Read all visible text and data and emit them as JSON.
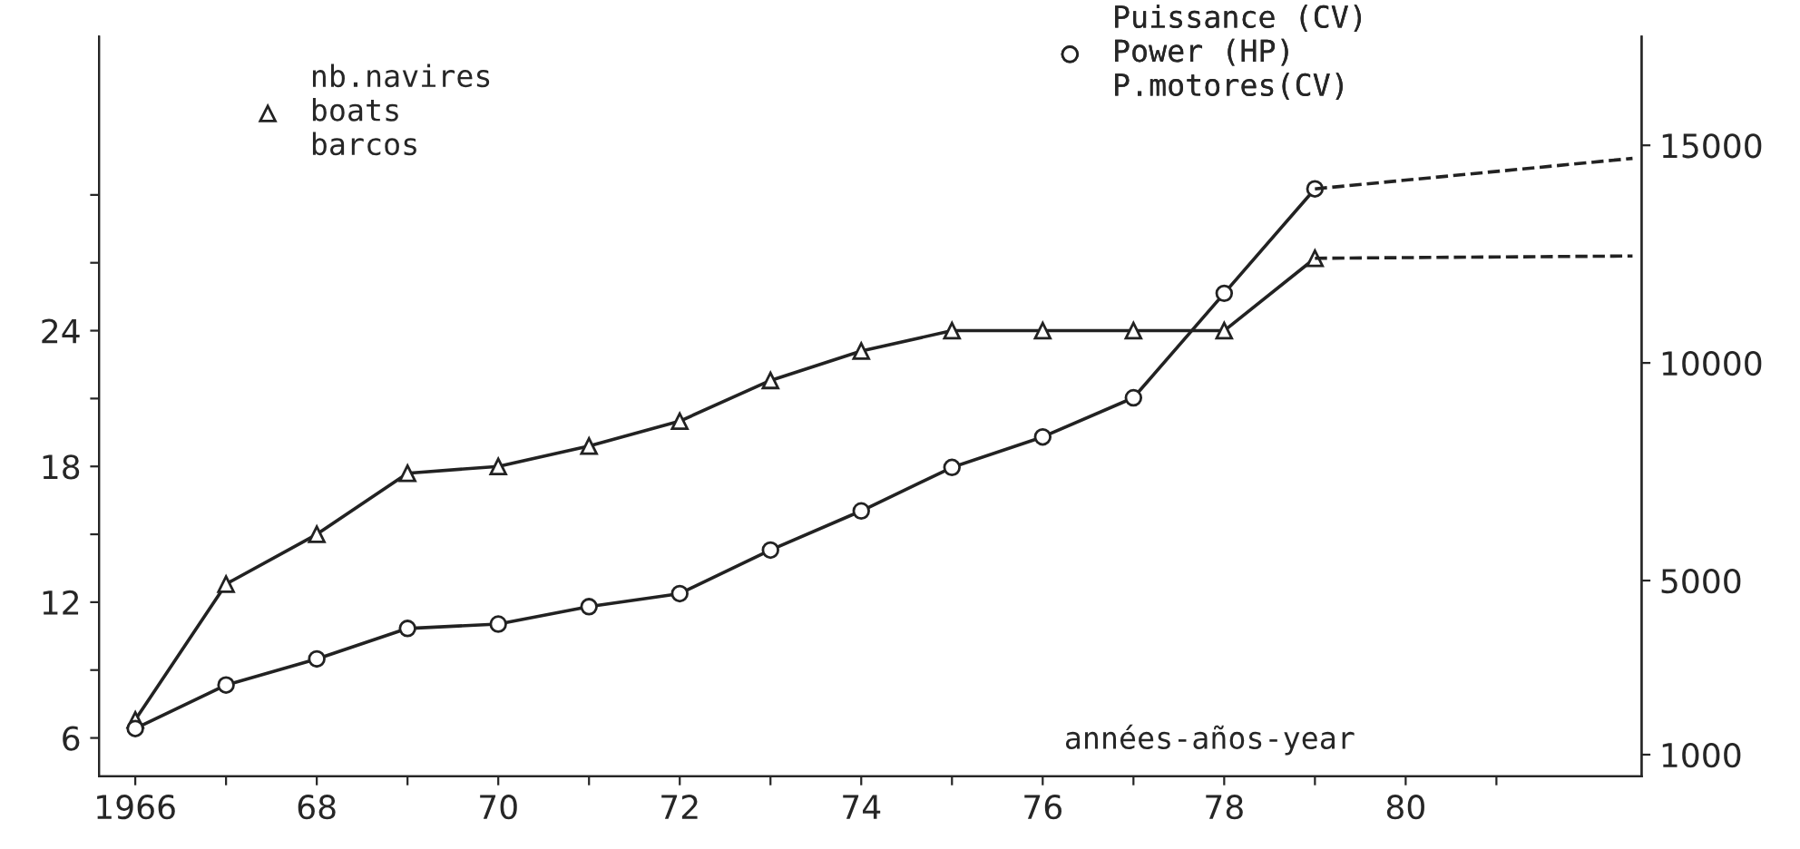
{
  "chart_data": {
    "type": "line",
    "x": [
      1966,
      1967,
      1968,
      1969,
      1970,
      1971,
      1972,
      1973,
      1974,
      1975,
      1976,
      1977,
      1978,
      1979,
      1982.5
    ],
    "series": [
      {
        "name": "nb.navires\nboats\nbarcos",
        "marker": "triangle",
        "color": "#222222",
        "values": [
          6.8,
          12.8,
          15,
          17.7,
          18,
          18.9,
          20,
          21.8,
          23.1,
          24,
          24,
          24,
          24,
          27.2,
          null
        ]
      },
      {
        "name": "Puissance (CV)\nPower (HP)\nP.motores(CV)",
        "axis": "y2",
        "marker": "circle",
        "color": "#222222",
        "values": [
          1600,
          2600,
          3200,
          3900,
          4000,
          4400,
          4700,
          5700,
          6600,
          7600,
          8300,
          9200,
          11600,
          14000,
          null
        ]
      },
      {
        "values": [
          null,
          null,
          null,
          null,
          null,
          null,
          null,
          null,
          null,
          null,
          null,
          null,
          null,
          27.2,
          27.3
        ],
        "line_style": "dashed",
        "marker": "none",
        "color": "#222222"
      },
      {
        "axis": "y2",
        "values": [
          null,
          null,
          null,
          null,
          null,
          null,
          null,
          null,
          null,
          null,
          null,
          null,
          null,
          14000,
          14700
        ],
        "line_style": "dashed",
        "marker": "none",
        "color": "#222222"
      }
    ],
    "xlabel": "années-años-year",
    "xlim": [
      1965.6,
      1982.6
    ],
    "xticks": [
      {
        "value": 1966,
        "label": "1966"
      },
      {
        "value": 1967,
        "label": null
      },
      {
        "value": 1968,
        "label": "68"
      },
      {
        "value": 1969,
        "label": null
      },
      {
        "value": 1970,
        "label": "70"
      },
      {
        "value": 1971,
        "label": null
      },
      {
        "value": 1972,
        "label": "72"
      },
      {
        "value": 1973,
        "label": null
      },
      {
        "value": 1974,
        "label": "74"
      },
      {
        "value": 1975,
        "label": null
      },
      {
        "value": 1976,
        "label": "76"
      },
      {
        "value": 1977,
        "label": null
      },
      {
        "value": 1978,
        "label": "78"
      },
      {
        "value": 1979,
        "label": null
      },
      {
        "value": 1980,
        "label": "80"
      },
      {
        "value": 1981,
        "label": null
      }
    ],
    "ylim": [
      4.3,
      37
    ],
    "yticks": [
      6,
      {
        "value": 9,
        "label": null
      },
      12,
      {
        "value": 15,
        "label": null
      },
      18,
      {
        "value": 21,
        "label": null
      },
      24,
      {
        "value": 27,
        "label": null
      },
      {
        "value": 30,
        "label": null
      }
    ],
    "y2lim": [
      500,
      17500
    ],
    "y2ticks": [
      1000,
      5000,
      10000,
      15000
    ],
    "legend": "top",
    "grid": false
  }
}
